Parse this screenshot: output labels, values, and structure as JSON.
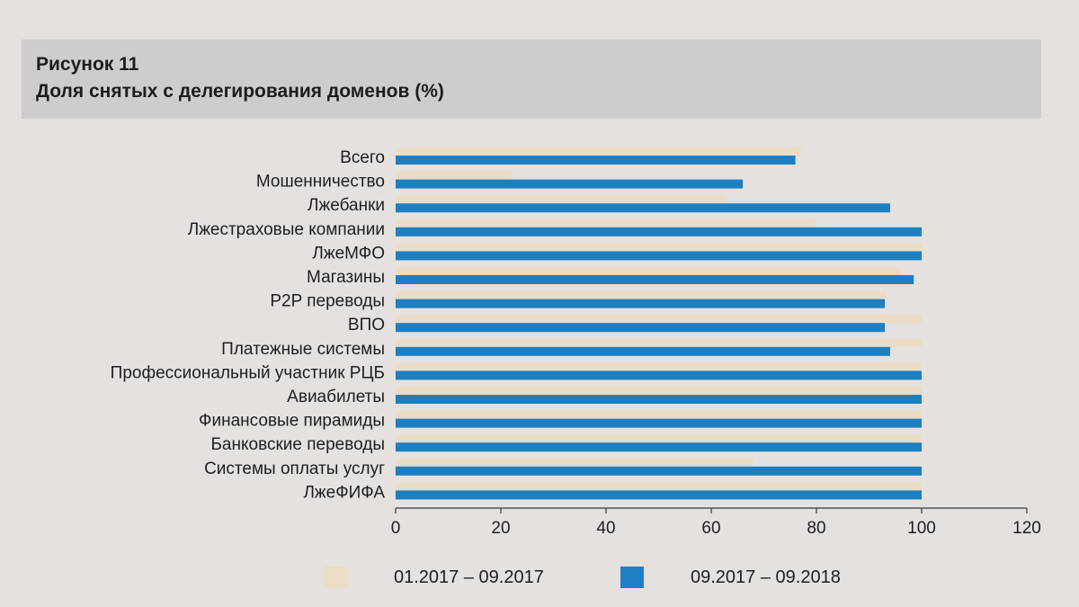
{
  "figure": {
    "number": "Рисунок 11",
    "title": "Доля снятых с делегирования доменов (%)"
  },
  "chart_data": {
    "type": "bar",
    "orientation": "horizontal",
    "title": "Доля снятых с делегирования доменов (%)",
    "xlabel": "",
    "ylabel": "",
    "xlim": [
      0,
      120
    ],
    "xticks": [
      "0",
      "20",
      "40",
      "60",
      "80",
      "100",
      "120"
    ],
    "grid": false,
    "legend": "bottom",
    "categories": [
      "Всего",
      "Мошенничество",
      "Лжебанки",
      "Лжестраховые компании",
      "ЛжеМФО",
      "Магазины",
      "P2P переводы",
      "ВПО",
      "Платежные системы",
      "Профессиональный участник РЦБ",
      "Авиабилеты",
      "Финансовые пирамиды",
      "Банковские переводы",
      "Системы оплаты услуг",
      "ЛжеФИФА"
    ],
    "series": [
      {
        "name": "01.2017 – 09.2017",
        "color": "#ebdcc4",
        "values": [
          77,
          22,
          63,
          80,
          100,
          96,
          93,
          100,
          100,
          100,
          100,
          100,
          100,
          68,
          100
        ]
      },
      {
        "name": "09.2017 – 09.2018",
        "color": "#1d7fc1",
        "values": [
          76,
          66,
          94,
          100,
          100,
          98.5,
          93,
          93,
          94,
          100,
          100,
          100,
          100,
          100,
          100
        ]
      }
    ]
  }
}
